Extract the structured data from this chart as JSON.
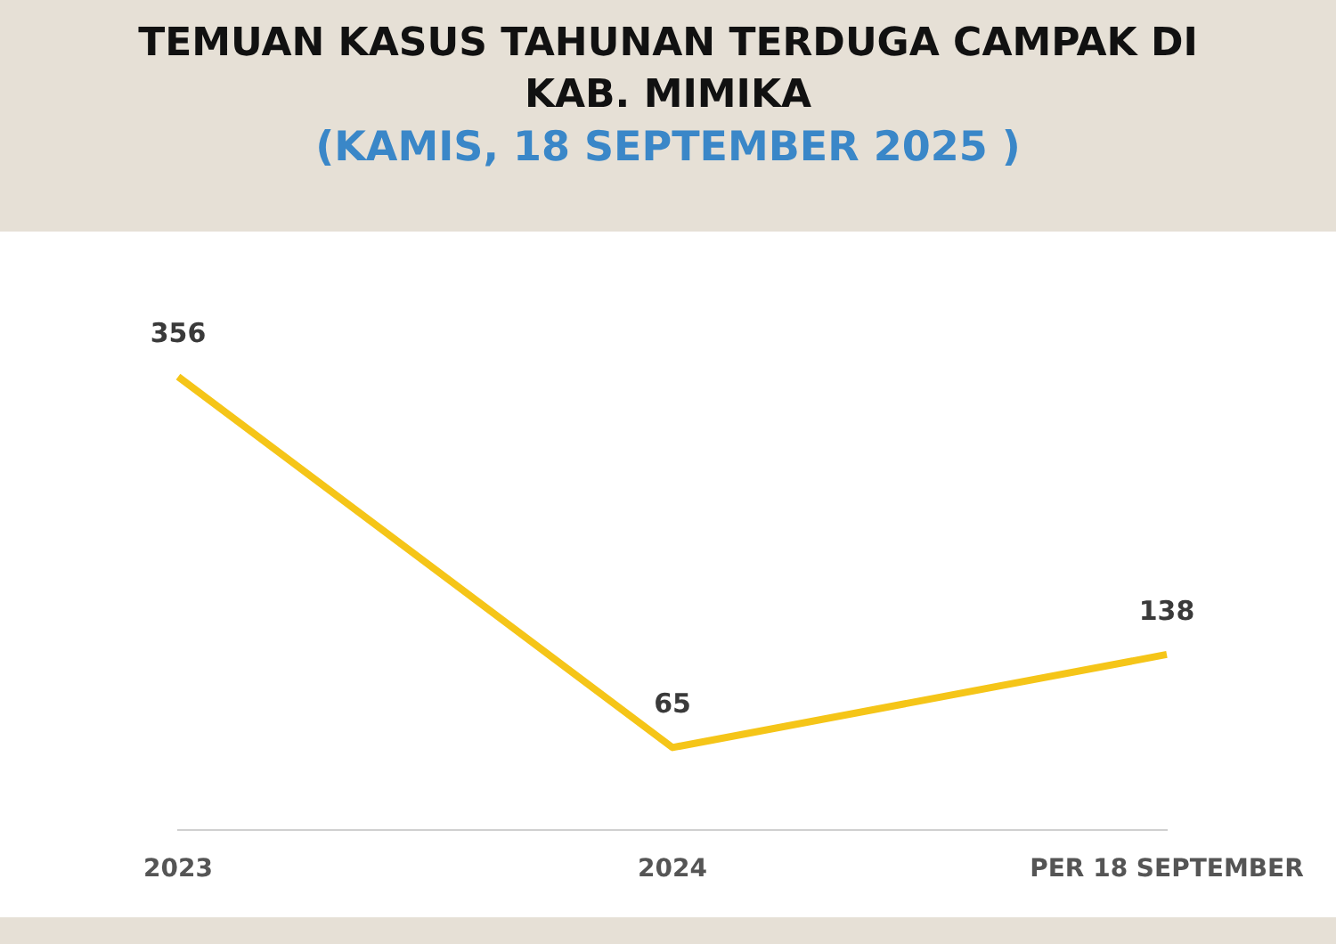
{
  "chart_data": {
    "type": "line",
    "title": "TEMUAN KASUS TAHUNAN TERDUGA CAMPAK DI KAB. MIMIKA",
    "subtitle": "(KAMIS, 18 SEPTEMBER 2025 )",
    "categories": [
      "2023",
      "2024",
      "PER 18 SEPTEMBER"
    ],
    "series": [
      {
        "color": "#f5c518",
        "values": [
          356,
          65,
          138
        ]
      }
    ],
    "data_labels": true,
    "grid": false,
    "legend": false,
    "marker": "none",
    "line_style": "solid"
  }
}
